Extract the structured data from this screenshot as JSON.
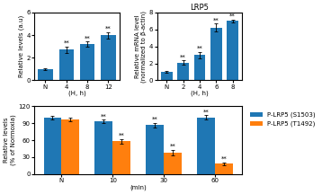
{
  "chart_data": [
    {
      "type": "bar",
      "categories": [
        "N",
        "4",
        "8",
        "12"
      ],
      "values": [
        1.0,
        2.7,
        3.2,
        4.0
      ],
      "errors": [
        0.08,
        0.28,
        0.22,
        0.28
      ],
      "xlabel": "(H, h)",
      "ylabel": "Relative levels (a.u)",
      "ylim": [
        0,
        6
      ],
      "yticks": [
        0,
        2,
        4,
        6
      ],
      "annotations": [
        {
          "text": "**",
          "category": "4"
        },
        {
          "text": "**",
          "category": "8"
        },
        {
          "text": "**",
          "category": "12"
        }
      ]
    },
    {
      "type": "bar",
      "title": "LRP5",
      "categories": [
        "N",
        "2",
        "4",
        "6",
        "8"
      ],
      "values": [
        1.0,
        2.1,
        3.0,
        6.2,
        7.0
      ],
      "errors": [
        0.08,
        0.28,
        0.38,
        0.48,
        0.18
      ],
      "xlabel": "(H, h)",
      "ylabel": "Relative mRNA level\n(normalized to β-actin)",
      "ylim": [
        0,
        8
      ],
      "yticks": [
        0,
        2,
        4,
        6,
        8
      ],
      "annotations": [
        {
          "text": "**",
          "category": "2"
        },
        {
          "text": "**",
          "category": "4"
        },
        {
          "text": "**",
          "category": "6"
        },
        {
          "text": "**",
          "category": "8"
        }
      ]
    },
    {
      "type": "bar",
      "categories": [
        "N",
        "10",
        "30",
        "60"
      ],
      "series": [
        {
          "name": "P-LRP5 (S1503)",
          "values": [
            100,
            93,
            87,
            100
          ],
          "errors": [
            3,
            3,
            4,
            4
          ]
        },
        {
          "name": "P-LRP5 (T1492)",
          "values": [
            97,
            58,
            38,
            18
          ],
          "errors": [
            3,
            4,
            5,
            3
          ]
        }
      ],
      "xlabel": "(min)",
      "ylabel": "Relative levels\n(% of Normoxia)",
      "ylim": [
        0,
        120
      ],
      "yticks": [
        0,
        30,
        60,
        90,
        120
      ],
      "legend": "upper left",
      "annotations": [
        {
          "text": "**",
          "category": "10",
          "series": "P-LRP5 (S1503)"
        },
        {
          "text": "**",
          "category": "30",
          "series": "P-LRP5 (S1503)"
        },
        {
          "text": "**",
          "category": "60",
          "series": "P-LRP5 (S1503)"
        },
        {
          "text": "**",
          "category": "10",
          "series": "P-LRP5 (T1492)"
        },
        {
          "text": "**",
          "category": "30",
          "series": "P-LRP5 (T1492)"
        },
        {
          "text": "**",
          "category": "60",
          "series": "P-LRP5 (T1492)"
        }
      ]
    }
  ]
}
